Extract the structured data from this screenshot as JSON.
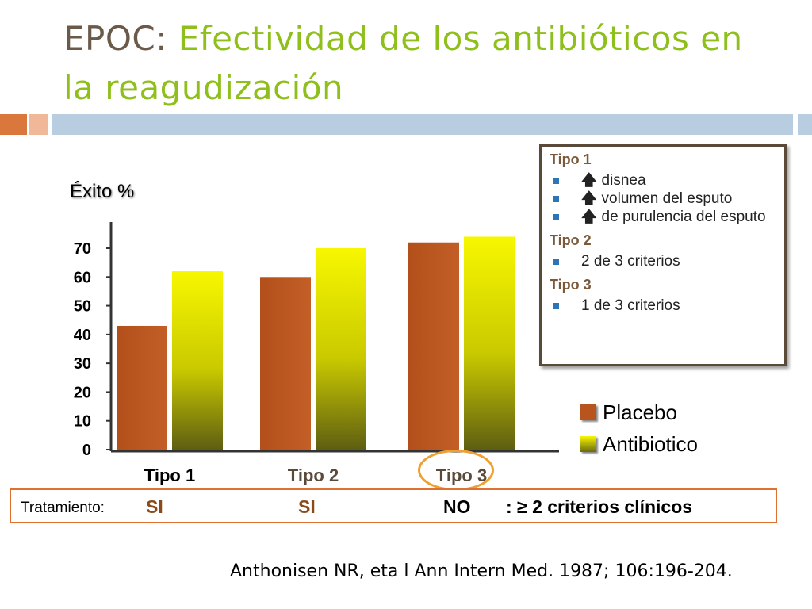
{
  "slide": {
    "title_lead": "EPOC:",
    "title_rest": "Efectividad de los antibióticos en la reagudización",
    "citation": "Anthonisen NR, eta l Ann Intern Med. 1987; 106:196-204."
  },
  "chart_data": {
    "type": "bar",
    "ylabel": "Éxito %",
    "ylim": [
      0,
      70
    ],
    "yticks": [
      "0",
      "10",
      "20",
      "30",
      "40",
      "50",
      "60",
      "70"
    ],
    "categories": [
      "Tipo 1",
      "Tipo 2",
      "Tipo 3"
    ],
    "category_colors": [
      "#000000",
      "#5a4a3a",
      "#5a4a3a"
    ],
    "series": [
      {
        "name": "Placebo",
        "values": [
          43,
          60,
          72
        ],
        "color": "#b8541e"
      },
      {
        "name": "Antibiotico",
        "values": [
          62,
          70,
          74
        ],
        "color": "#e5e500"
      }
    ],
    "grid": false,
    "legend_position": "right"
  },
  "criteria": {
    "groups": [
      {
        "title": "Tipo 1",
        "items": [
          {
            "arrow": "🡅",
            "text": "disnea"
          },
          {
            "arrow": "🡅",
            "text": "volumen del esputo"
          },
          {
            "arrow": "🡅",
            "text": "de purulencia del esputo"
          }
        ]
      },
      {
        "title": "Tipo 2",
        "items": [
          {
            "arrow": "",
            "text": "2 de 3 criterios"
          }
        ]
      },
      {
        "title": "Tipo 3",
        "items": [
          {
            "arrow": "",
            "text": "1 de 3 criterios"
          }
        ]
      }
    ]
  },
  "legend": {
    "placebo": "Placebo",
    "antibiotico": "Antibiotico"
  },
  "treatment": {
    "label": "Tratamiento:",
    "values": [
      {
        "text": "SI",
        "color": "#8b4a1a"
      },
      {
        "text": "SI",
        "color": "#8b4a1a"
      },
      {
        "text": "NO",
        "color": "#000000"
      }
    ],
    "note": ": ≥ 2 criterios clínicos"
  }
}
